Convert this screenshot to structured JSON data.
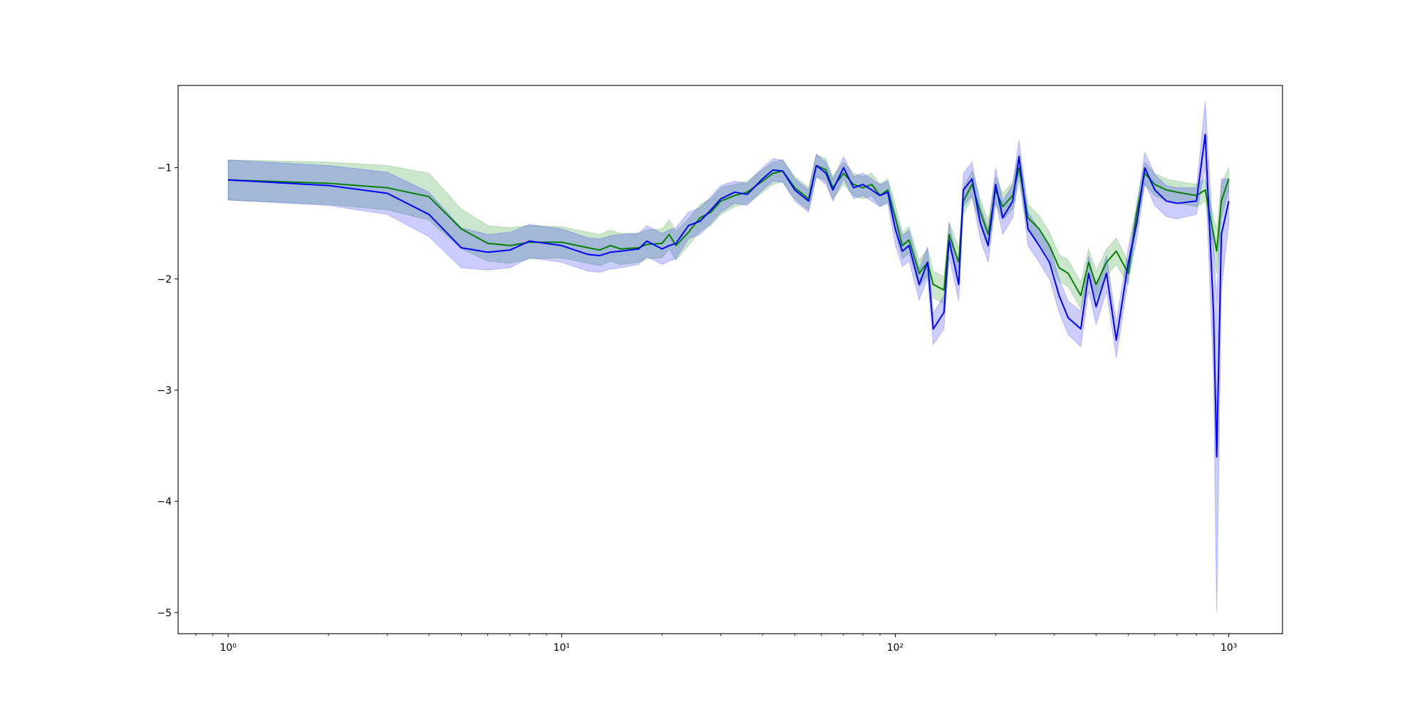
{
  "chart_data": {
    "type": "line",
    "xscale": "log",
    "xlim": [
      0.708,
      1449
    ],
    "ylim": [
      -5.19,
      -0.26
    ],
    "xticks": [
      {
        "value": 1,
        "label": "10⁰"
      },
      {
        "value": 10,
        "label": "10¹"
      },
      {
        "value": 100,
        "label": "10²"
      },
      {
        "value": 1000,
        "label": "10³"
      }
    ],
    "xminorticks": [
      0.8,
      0.9,
      2,
      3,
      4,
      5,
      6,
      7,
      8,
      9,
      20,
      30,
      40,
      50,
      60,
      70,
      80,
      90,
      200,
      300,
      400,
      500,
      600,
      700,
      800,
      900
    ],
    "yticks": [
      {
        "value": -5,
        "label": "−5"
      },
      {
        "value": -4,
        "label": "−4"
      },
      {
        "value": -3,
        "label": "−3"
      },
      {
        "value": -2,
        "label": "−2"
      },
      {
        "value": -1,
        "label": "−1"
      }
    ],
    "grid": false,
    "band_opacity": 0.2,
    "x": [
      1,
      2,
      3,
      4,
      5,
      6,
      7,
      8,
      10,
      12,
      13,
      14,
      15,
      17,
      18,
      20,
      21,
      22,
      24,
      26,
      28,
      30,
      33,
      36,
      40,
      43,
      46,
      50,
      55,
      58,
      62,
      65,
      70,
      75,
      80,
      85,
      90,
      95,
      100,
      105,
      110,
      118,
      125,
      130,
      140,
      145,
      155,
      160,
      170,
      180,
      190,
      200,
      210,
      225,
      235,
      250,
      270,
      290,
      310,
      330,
      360,
      380,
      400,
      430,
      460,
      500,
      530,
      560,
      600,
      650,
      700,
      800,
      850,
      900,
      920,
      950,
      1000
    ],
    "series": [
      {
        "color": "#008000",
        "values": [
          -1.11,
          -1.14,
          -1.18,
          -1.26,
          -1.55,
          -1.68,
          -1.7,
          -1.67,
          -1.67,
          -1.72,
          -1.74,
          -1.7,
          -1.73,
          -1.72,
          -1.69,
          -1.68,
          -1.6,
          -1.7,
          -1.58,
          -1.45,
          -1.4,
          -1.3,
          -1.25,
          -1.22,
          -1.12,
          -1.05,
          -1.03,
          -1.18,
          -1.28,
          -0.98,
          -1.02,
          -1.18,
          -1.05,
          -1.15,
          -1.18,
          -1.15,
          -1.25,
          -1.2,
          -1.45,
          -1.7,
          -1.65,
          -1.95,
          -1.85,
          -2.05,
          -2.1,
          -1.6,
          -1.85,
          -1.3,
          -1.15,
          -1.4,
          -1.6,
          -1.2,
          -1.35,
          -1.25,
          -1.0,
          -1.45,
          -1.55,
          -1.7,
          -1.9,
          -1.95,
          -2.15,
          -1.85,
          -2.05,
          -1.85,
          -1.75,
          -1.95,
          -1.4,
          -1.05,
          -1.15,
          -1.2,
          -1.22,
          -1.25,
          -1.2,
          -1.6,
          -1.75,
          -1.3,
          -1.1
        ],
        "errors": [
          0.18,
          0.19,
          0.2,
          0.21,
          0.18,
          0.16,
          0.16,
          0.15,
          0.14,
          0.14,
          0.14,
          0.14,
          0.14,
          0.13,
          0.13,
          0.13,
          0.13,
          0.13,
          0.12,
          0.12,
          0.12,
          0.12,
          0.1,
          0.1,
          0.1,
          0.1,
          0.1,
          0.1,
          0.1,
          0.1,
          0.1,
          0.1,
          0.1,
          0.1,
          0.1,
          0.1,
          0.1,
          0.1,
          0.12,
          0.12,
          0.12,
          0.12,
          0.12,
          0.12,
          0.12,
          0.12,
          0.12,
          0.12,
          0.12,
          0.12,
          0.12,
          0.12,
          0.12,
          0.12,
          0.12,
          0.12,
          0.12,
          0.12,
          0.12,
          0.12,
          0.12,
          0.12,
          0.12,
          0.12,
          0.12,
          0.1,
          0.1,
          0.1,
          0.1,
          0.1,
          0.1,
          0.1,
          0.1,
          0.15,
          0.2,
          0.15,
          0.1
        ]
      },
      {
        "color": "#0000ff",
        "values": [
          -1.11,
          -1.16,
          -1.23,
          -1.42,
          -1.72,
          -1.76,
          -1.74,
          -1.66,
          -1.7,
          -1.78,
          -1.79,
          -1.76,
          -1.75,
          -1.73,
          -1.66,
          -1.73,
          -1.7,
          -1.68,
          -1.52,
          -1.48,
          -1.38,
          -1.28,
          -1.22,
          -1.24,
          -1.1,
          -1.02,
          -1.03,
          -1.2,
          -1.3,
          -0.98,
          -1.05,
          -1.2,
          -1.0,
          -1.18,
          -1.15,
          -1.2,
          -1.25,
          -1.22,
          -1.55,
          -1.75,
          -1.7,
          -2.05,
          -1.85,
          -2.45,
          -2.3,
          -1.65,
          -2.05,
          -1.2,
          -1.1,
          -1.5,
          -1.7,
          -1.15,
          -1.45,
          -1.3,
          -0.9,
          -1.55,
          -1.7,
          -1.85,
          -2.15,
          -2.35,
          -2.45,
          -1.95,
          -2.25,
          -1.95,
          -2.55,
          -1.85,
          -1.5,
          -1.0,
          -1.2,
          -1.3,
          -1.32,
          -1.3,
          -0.7,
          -2.3,
          -3.6,
          -1.6,
          -1.3
        ],
        "errors": [
          0.18,
          0.18,
          0.19,
          0.2,
          0.18,
          0.16,
          0.16,
          0.15,
          0.15,
          0.15,
          0.15,
          0.15,
          0.15,
          0.14,
          0.14,
          0.14,
          0.14,
          0.14,
          0.12,
          0.12,
          0.12,
          0.12,
          0.1,
          0.1,
          0.1,
          0.1,
          0.1,
          0.1,
          0.1,
          0.1,
          0.1,
          0.1,
          0.1,
          0.1,
          0.1,
          0.1,
          0.1,
          0.1,
          0.14,
          0.14,
          0.14,
          0.14,
          0.14,
          0.14,
          0.15,
          0.15,
          0.15,
          0.15,
          0.15,
          0.15,
          0.15,
          0.15,
          0.15,
          0.15,
          0.15,
          0.15,
          0.15,
          0.15,
          0.15,
          0.15,
          0.16,
          0.16,
          0.16,
          0.16,
          0.16,
          0.14,
          0.14,
          0.14,
          0.14,
          0.14,
          0.14,
          0.12,
          0.3,
          0.6,
          1.4,
          0.5,
          0.2
        ]
      }
    ]
  }
}
